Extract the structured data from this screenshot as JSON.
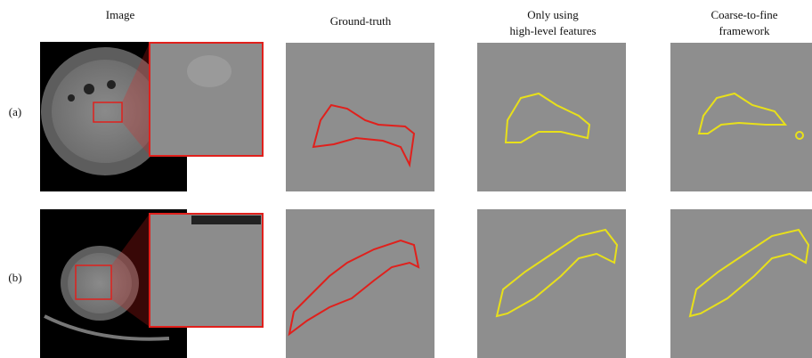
{
  "columns": [
    [
      "Image"
    ],
    [
      "Ground-truth"
    ],
    [
      "Only using",
      "high-level features"
    ],
    [
      "Coarse-to-fine",
      "framework"
    ]
  ],
  "rows": [
    "(a)",
    "(b)"
  ]
}
